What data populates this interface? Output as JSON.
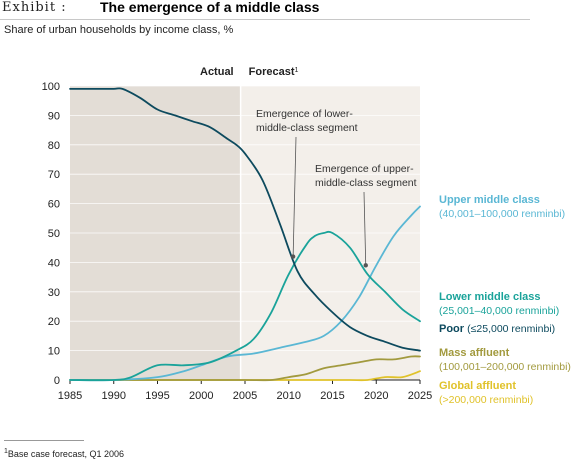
{
  "header": {
    "exhibit": "Exhibit :",
    "title": "The emergence of a middle class"
  },
  "subtitle": "Share of urban households by income class, %",
  "footnote": {
    "marker": "1",
    "text": "Base case forecast, Q1 2006"
  },
  "colors": {
    "actual_shade": "#e3ddd6",
    "forecast_shade": "#f3efea",
    "poor": "#0d4a5e",
    "lower_middle": "#1aa39a",
    "upper_middle": "#5ab7d4",
    "mass_affluent": "#a29a3e",
    "global_affluent": "#e0c22a",
    "annotation": "#555555"
  },
  "chart_data": {
    "type": "line",
    "title": "The emergence of a middle class",
    "subtitle": "Share of urban households by income class, %",
    "xlabel": "",
    "ylabel": "",
    "xlim": [
      1985,
      2025
    ],
    "ylim": [
      0,
      100
    ],
    "x_ticks": [
      1985,
      1990,
      1995,
      2000,
      2005,
      2010,
      2015,
      2020,
      2025
    ],
    "y_ticks": [
      0,
      10,
      20,
      30,
      40,
      50,
      60,
      70,
      80,
      90,
      100
    ],
    "grid": true,
    "regions": [
      {
        "label": "Actual",
        "from": 1985,
        "to": 2004.5
      },
      {
        "label": "Forecast",
        "superscript": "1",
        "from": 2004.5,
        "to": 2025
      }
    ],
    "series": [
      {
        "name": "Poor",
        "detail": "(≤25,000 renminbi)",
        "color_key": "poor",
        "x": [
          1985,
          1986,
          1988,
          1990,
          1991,
          1993,
          1995,
          1997,
          1999,
          2001,
          2003,
          2004,
          2005,
          2007,
          2009,
          2011,
          2013,
          2015,
          2017,
          2019,
          2021,
          2023,
          2025
        ],
        "y": [
          99,
          99,
          99,
          99,
          99,
          96,
          92,
          90,
          88,
          86,
          82,
          80,
          77,
          68,
          53,
          37,
          29,
          23,
          18,
          15,
          13,
          11,
          10
        ]
      },
      {
        "name": "Lower middle class",
        "detail": "(25,001–40,000 renminbi)",
        "color_key": "lower_middle",
        "x": [
          1985,
          1990,
          1992,
          1995,
          1998,
          2001,
          2004,
          2006,
          2008,
          2010,
          2012,
          2013,
          2014,
          2015,
          2017,
          2019,
          2021,
          2023,
          2025
        ],
        "y": [
          0,
          0,
          1,
          5,
          5,
          6,
          10,
          14,
          23,
          36,
          46,
          49,
          50,
          50,
          45,
          36,
          30,
          24,
          20
        ]
      },
      {
        "name": "Upper middle class",
        "detail": "(40,001–100,000 renminbi)",
        "color_key": "upper_middle",
        "x": [
          1985,
          1990,
          1995,
          1998,
          2000,
          2003,
          2006,
          2009,
          2012,
          2014,
          2016,
          2018,
          2020,
          2022,
          2024,
          2025
        ],
        "y": [
          0,
          0,
          1,
          3,
          5,
          8,
          9,
          11,
          13,
          15,
          20,
          28,
          39,
          49,
          56,
          59
        ]
      },
      {
        "name": "Mass affluent",
        "detail": "(100,001–200,000 renminbi)",
        "color_key": "mass_affluent",
        "x": [
          1985,
          2000,
          2005,
          2008,
          2010,
          2012,
          2014,
          2016,
          2018,
          2020,
          2022,
          2024,
          2025
        ],
        "y": [
          0,
          0,
          0,
          0,
          1,
          2,
          4,
          5,
          6,
          7,
          7,
          8,
          8
        ]
      },
      {
        "name": "Global affluent",
        "detail": "(>200,000 renminbi)",
        "color_key": "global_affluent",
        "x": [
          1985,
          2010,
          2014,
          2017,
          2019,
          2021,
          2023,
          2025
        ],
        "y": [
          0,
          0,
          0,
          0,
          0,
          1,
          1,
          3
        ]
      }
    ],
    "annotations": [
      {
        "text_lines": [
          "Emergence of lower-",
          "middle-class segment"
        ],
        "point": [
          2010.5,
          42
        ]
      },
      {
        "text_lines": [
          "Emergence of upper-",
          "middle-class segment"
        ],
        "point": [
          2018.8,
          39
        ]
      }
    ]
  }
}
